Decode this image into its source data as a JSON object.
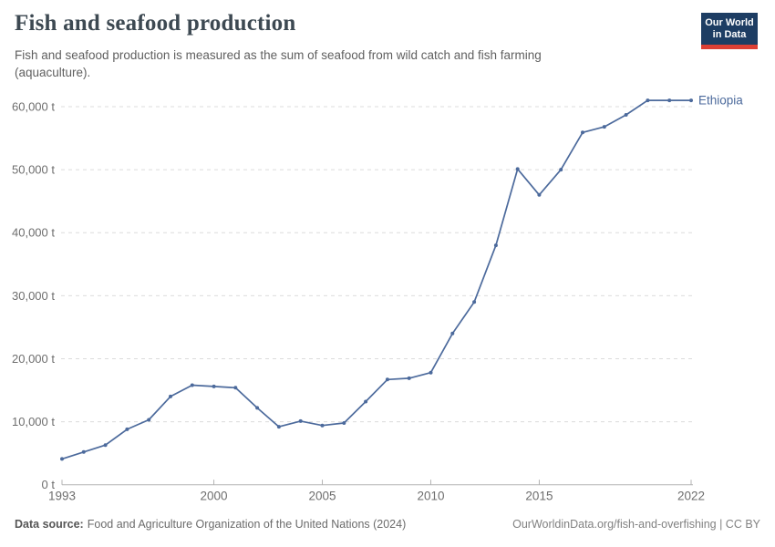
{
  "header": {
    "title": "Fish and seafood production",
    "subtitle": "Fish and seafood production is measured as the sum of seafood from wild catch and fish farming (aquaculture).",
    "logo": {
      "line1": "Our World",
      "line2": "in Data"
    }
  },
  "chart_data": {
    "type": "line",
    "title": "Fish and seafood production",
    "unit": "t",
    "entity": "Ethiopia",
    "x": [
      1993,
      1994,
      1995,
      1996,
      1997,
      1998,
      1999,
      2000,
      2001,
      2002,
      2003,
      2004,
      2005,
      2006,
      2007,
      2008,
      2009,
      2010,
      2011,
      2012,
      2013,
      2014,
      2015,
      2016,
      2017,
      2018,
      2019,
      2020,
      2021,
      2022
    ],
    "series": [
      {
        "name": "Ethiopia",
        "color": "#4c6a9c",
        "values": [
          4100,
          5200,
          6300,
          8800,
          10300,
          14000,
          15800,
          15600,
          15400,
          12200,
          9200,
          10100,
          9400,
          9800,
          13200,
          16700,
          16900,
          17800,
          24000,
          29000,
          38000,
          50100,
          46000,
          50000,
          55900,
          56800,
          58700,
          61000,
          61000,
          61000
        ]
      }
    ],
    "xlabel": "",
    "ylabel": "",
    "ylim": [
      0,
      62000
    ],
    "grid": true,
    "legend_position": "end-of-line",
    "y_ticks": [
      {
        "value": 0,
        "label": "0 t"
      },
      {
        "value": 10000,
        "label": "10,000 t"
      },
      {
        "value": 20000,
        "label": "20,000 t"
      },
      {
        "value": 30000,
        "label": "30,000 t"
      },
      {
        "value": 40000,
        "label": "40,000 t"
      },
      {
        "value": 50000,
        "label": "50,000 t"
      },
      {
        "value": 60000,
        "label": "60,000 t"
      }
    ],
    "x_ticks": [
      {
        "value": 1993,
        "label": "1993"
      },
      {
        "value": 2000,
        "label": "2000"
      },
      {
        "value": 2005,
        "label": "2005"
      },
      {
        "value": 2010,
        "label": "2010"
      },
      {
        "value": 2015,
        "label": "2015"
      },
      {
        "value": 2022,
        "label": "2022"
      }
    ],
    "colors": {
      "line": "#4c6a9c",
      "grid": "#dcdcdc",
      "axis": "#b3b3b3",
      "tick_label": "#6e6e6e"
    }
  },
  "footer": {
    "datasource_label": "Data source:",
    "datasource_text": "Food and Agriculture Organization of the United Nations (2024)",
    "right": "OurWorldinData.org/fish-and-overfishing | CC BY"
  }
}
